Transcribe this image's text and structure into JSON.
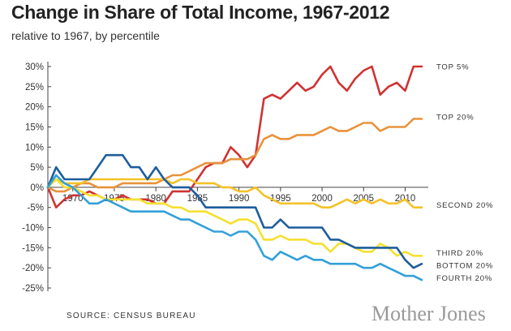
{
  "header": {
    "title": "Change in Share of Total Income, 1967-2012",
    "subtitle": "relative to 1967, by percentile"
  },
  "footer": {
    "source": "SOURCE: CENSUS BUREAU",
    "brand": "Mother Jones"
  },
  "chart_data": {
    "type": "line",
    "title": "Change in Share of Total Income, 1967-2012",
    "subtitle": "relative to 1967, by percentile",
    "xlabel": "",
    "ylabel": "",
    "xlim": [
      1967,
      2012
    ],
    "ylim": [
      -25,
      30
    ],
    "x_ticks": [
      1970,
      1975,
      1980,
      1985,
      1990,
      1995,
      2000,
      2005,
      2010
    ],
    "y_ticks": [
      30,
      25,
      20,
      15,
      10,
      5,
      0,
      -5,
      -10,
      -15,
      -20,
      -25
    ],
    "y_tick_labels": [
      "30%",
      "25%",
      "20%",
      "15%",
      "10%",
      "5%",
      "0%",
      "-5%",
      "-10%",
      "-15%",
      "-20%",
      "-25%"
    ],
    "grid": false,
    "legend": "labels at line ends (right)",
    "x": [
      1967,
      1968,
      1969,
      1970,
      1971,
      1972,
      1973,
      1974,
      1975,
      1976,
      1977,
      1978,
      1979,
      1980,
      1981,
      1982,
      1983,
      1984,
      1985,
      1986,
      1987,
      1988,
      1989,
      1990,
      1991,
      1992,
      1993,
      1994,
      1995,
      1996,
      1997,
      1998,
      1999,
      2000,
      2001,
      2002,
      2003,
      2004,
      2005,
      2006,
      2007,
      2008,
      2009,
      2010,
      2011,
      2012
    ],
    "series": [
      {
        "name": "TOP 5%",
        "color": "#d13232",
        "values": [
          0,
          -5,
          -3,
          -2,
          -2,
          -1,
          -2,
          -3,
          -3,
          -2,
          -3,
          -3,
          -3,
          -4,
          -4,
          -1,
          -1,
          -1,
          2,
          5,
          6,
          6,
          10,
          8,
          5,
          8,
          22,
          23,
          22,
          24,
          26,
          24,
          25,
          28,
          30,
          26,
          24,
          27,
          29,
          30,
          23,
          25,
          26,
          24,
          30,
          30
        ]
      },
      {
        "name": "TOP 20%",
        "color": "#e8923a",
        "values": [
          0,
          -1,
          -1,
          0,
          1,
          1,
          0,
          0,
          0,
          1,
          1,
          1,
          1,
          1,
          2,
          3,
          3,
          4,
          5,
          6,
          6,
          6,
          7,
          7,
          7,
          8,
          12,
          13,
          12,
          12,
          13,
          13,
          13,
          14,
          15,
          14,
          14,
          15,
          16,
          16,
          14,
          15,
          15,
          15,
          17,
          17
        ]
      },
      {
        "name": "SECOND 20%",
        "color": "#f4c228",
        "values": [
          0,
          2,
          1,
          1,
          1,
          2,
          2,
          2,
          2,
          2,
          2,
          2,
          2,
          2,
          2,
          1,
          2,
          2,
          1,
          1,
          1,
          0,
          0,
          -1,
          -1,
          0,
          -2,
          -3,
          -4,
          -4,
          -4,
          -4,
          -4,
          -5,
          -5,
          -4,
          -3,
          -4,
          -3,
          -4,
          -3,
          -4,
          -4,
          -3,
          -5,
          -5
        ]
      },
      {
        "name": "THIRD 20%",
        "color": "#f5e030",
        "values": [
          0,
          2,
          0,
          0,
          -1,
          -2,
          -2,
          -3,
          -3,
          -3,
          -3,
          -3,
          -4,
          -4,
          -4,
          -5,
          -5,
          -6,
          -6,
          -6,
          -7,
          -8,
          -9,
          -8,
          -8,
          -9,
          -13,
          -13,
          -12,
          -13,
          -13,
          -13,
          -14,
          -14,
          -16,
          -14,
          -14,
          -15,
          -16,
          -16,
          -14,
          -15,
          -17,
          -16,
          -17,
          -17
        ]
      },
      {
        "name": "BOTTOM 20%",
        "color": "#1e5d9c",
        "values": [
          0,
          5,
          2,
          2,
          2,
          2,
          5,
          8,
          8,
          8,
          5,
          5,
          2,
          5,
          2,
          0,
          0,
          0,
          -2,
          -5,
          -5,
          -5,
          -5,
          -5,
          -5,
          -5,
          -10,
          -10,
          -8,
          -10,
          -10,
          -10,
          -10,
          -10,
          -13,
          -13,
          -14,
          -15,
          -15,
          -15,
          -15,
          -15,
          -15,
          -18,
          -20,
          -19
        ]
      },
      {
        "name": "FOURTH 20%",
        "color": "#33a0d8",
        "values": [
          0,
          3,
          1,
          0,
          -2,
          -4,
          -4,
          -3,
          -4,
          -5,
          -6,
          -6,
          -6,
          -6,
          -6,
          -7,
          -8,
          -8,
          -9,
          -10,
          -11,
          -11,
          -12,
          -11,
          -11,
          -13,
          -17,
          -18,
          -16,
          -17,
          -18,
          -17,
          -18,
          -18,
          -19,
          -19,
          -19,
          -19,
          -20,
          -20,
          -19,
          -20,
          -21,
          -22,
          -22,
          -23
        ]
      }
    ]
  }
}
